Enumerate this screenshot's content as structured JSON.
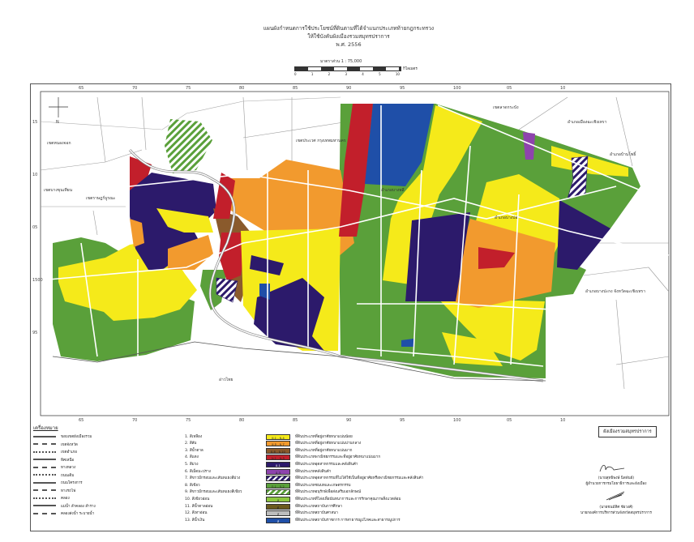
{
  "header": {
    "title_line1": "แผนผังกำหนดการใช้ประโยชน์ที่ดินตามที่ได้จำแนกประเภทท้ายกฎกระทรวง",
    "title_line2": "ให้ใช้บังคับผังเมืองรวมสมุทรปราการ",
    "title_line3": "พ.ศ. 2556",
    "scale_text": "มาตราส่วน 1 : 75,000",
    "scale_ticks": [
      "0",
      "1",
      "2",
      "3",
      "4",
      "5",
      "10"
    ],
    "scale_unit": "กิโลเมตร"
  },
  "map": {
    "top_ticks": [
      "65",
      "70",
      "75",
      "80",
      "85",
      "90",
      "95",
      "100",
      "05",
      "10"
    ],
    "bottom_ticks": [
      "65",
      "70",
      "75",
      "80",
      "85",
      "90",
      "95",
      "100",
      "05",
      "10"
    ],
    "left_ticks": [
      "15",
      "10",
      "05",
      "1500",
      "95"
    ],
    "labels": {
      "sea": "อ่าวไทย",
      "bangkok": "เขตประเวศ กรุงเทพมหานคร",
      "bangbo": "อำเภอเมืองฉะเชิงเทรา",
      "district_east": "อำเภอบางปะกง จังหวัดฉะเชิงเทรา",
      "ladkrabang": "เขตลาดกระบัง",
      "bangnamprieo": "อำเภอบ้านโพธิ์",
      "nongjok": "เขตหนองจอก",
      "bangkhuntien": "เขตบางขุนเทียน",
      "bangbon": "เขตราษฎร์บูรณะ",
      "bangplee": "อำเภอบางพลี",
      "bangbo2": "อำเภอบางบ่อ",
      "north_arrow": "N"
    },
    "colors": [
      "#f5ea1a",
      "#f29a2e",
      "#8a5a2c",
      "#c21f2b",
      "#2c1a6b",
      "#8e44ad",
      "#2c1a6b",
      "#5aa03a",
      "#5aa03a",
      "#8cc63f",
      "#6b5a1e",
      "#bdbdbd",
      "#1f4fa8"
    ]
  },
  "legend": {
    "heading": "เครื่องหมาย",
    "symbols": [
      "ขอบเขตผังเมืองรวม",
      "เขตจังหวัด",
      "เขตอำเภอ",
      "ทิศเหนือ",
      "ทางหลวง",
      "ถนนเดิม",
      "ถนนโครงการ",
      "ทางรถไฟ",
      "คลอง",
      "แม่น้ำ ลำคลอง ลำราง",
      "คลองส่งน้ำ ระบายน้ำ"
    ],
    "land_use": [
      {
        "name": "1. สีเหลือง",
        "code": "ย.1 - ย.4",
        "desc": "ที่ดินประเภทที่อยู่อาศัยหนาแน่นน้อย"
      },
      {
        "name": "2. สีส้ม",
        "code": "ย.5 - ย.7",
        "desc": "ที่ดินประเภทที่อยู่อาศัยหนาแน่นปานกลาง"
      },
      {
        "name": "3. สีน้ำตาล",
        "code": "ย.8 - ย.10",
        "desc": "ที่ดินประเภทที่อยู่อาศัยหนาแน่นมาก"
      },
      {
        "name": "4. สีแดง",
        "code": "พ.1 - พ.5",
        "desc": "ที่ดินประเภทพาณิชยกรรมและที่อยู่อาศัยหนาแน่นมาก"
      },
      {
        "name": "5. สีม่วง",
        "code": "อ.1",
        "desc": "ที่ดินประเภทอุตสาหกรรมและคลังสินค้า"
      },
      {
        "name": "6. สีเม็ดมะปราง",
        "code": "อ.3",
        "desc": "ที่ดินประเภทคลังสินค้า"
      },
      {
        "name": "7. สีขาวมีกรอบและเส้นทแยงสีม่วง",
        "code": "",
        "desc": "ที่ดินประเภทอุตสาหกรรมที่ไม่ได้ใช้เป็นที่อยู่อาศัยหรือพาณิชยกรรมและคลังสินค้า"
      },
      {
        "name": "8. สีเขียว",
        "code": "ก.1 - ก.2",
        "desc": "ที่ดินประเภทชนบทและเกษตรกรรม"
      },
      {
        "name": "9. สีขาวมีกรอบและเส้นทแยงสีเขียว",
        "code": "",
        "desc": "ที่ดินประเภทอนุรักษ์เพื่อส่งเสริมเอกลักษณ์"
      },
      {
        "name": "10. สีเขียวอ่อน",
        "code": "ล",
        "desc": "ที่ดินประเภทที่โล่งเพื่อนันทนาการและการรักษาคุณภาพสิ่งแวดล้อม"
      },
      {
        "name": "11. สีน้ำตาลอ่อน",
        "code": "ศ",
        "desc": "ที่ดินประเภทสถาบันการศึกษา"
      },
      {
        "name": "12. สีเทาอ่อน",
        "code": "ส",
        "desc": "ที่ดินประเภทสถาบันศาสนา"
      },
      {
        "name": "13. สีน้ำเงิน",
        "code": "ส",
        "desc": "ที่ดินประเภทสถาบันราชการ การสาธารณูปโภคและสาธารณูปการ"
      }
    ]
  },
  "footer": {
    "plan_name": "ผังเมืองรวมสมุทรปราการ",
    "sig1_name": "(นายสุทธิพงษ์ นิลพันธ์)",
    "sig1_title": "ผู้อำนวยการกรมโยธาธิการและผังเมือง",
    "sig2_name": "(นายชนม์ทิศ ชัยวงศ์)",
    "sig2_title": "นายกองค์การบริหารส่วนจังหวัดสมุทรปราการ"
  }
}
